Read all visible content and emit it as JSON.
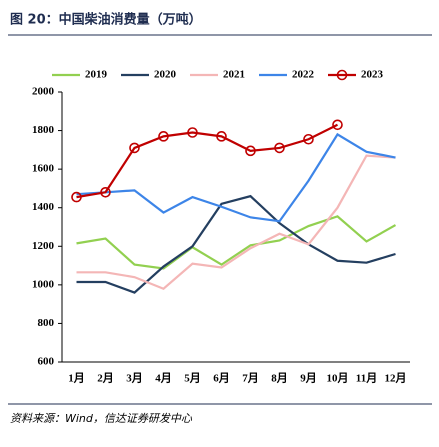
{
  "chart_data": {
    "type": "line",
    "title": "图 20：中国柴油消费量（万吨）",
    "source": "资料来源：Wind，信达证券研发中心",
    "categories": [
      "1月",
      "2月",
      "3月",
      "4月",
      "5月",
      "6月",
      "7月",
      "8月",
      "9月",
      "10月",
      "11月",
      "12月"
    ],
    "series": [
      {
        "name": "2019",
        "color": "#92d050",
        "values": [
          1215,
          1240,
          1105,
          1085,
          1195,
          1105,
          1205,
          1230,
          1305,
          1355,
          1225,
          1310
        ]
      },
      {
        "name": "2020",
        "color": "#243f60",
        "values": [
          1015,
          1015,
          960,
          1095,
          1200,
          1420,
          1460,
          1320,
          1210,
          1125,
          1115,
          1160
        ]
      },
      {
        "name": "2021",
        "color": "#f4b6b6",
        "values": [
          1065,
          1065,
          1040,
          980,
          1110,
          1090,
          1190,
          1265,
          1210,
          1400,
          1670,
          1660
        ]
      },
      {
        "name": "2022",
        "color": "#3d85e8",
        "values": [
          1470,
          1480,
          1490,
          1375,
          1455,
          1405,
          1350,
          1330,
          1540,
          1780,
          1690,
          1660
        ]
      },
      {
        "name": "2023",
        "color": "#c00000",
        "marker": "circle",
        "values": [
          1455,
          1480,
          1710,
          1770,
          1790,
          1770,
          1695,
          1710,
          1755,
          1830,
          null,
          null
        ]
      }
    ],
    "ylim": [
      600,
      2000
    ],
    "yticks": [
      600,
      800,
      1000,
      1200,
      1400,
      1600,
      1800,
      2000
    ],
    "grid": false,
    "legend": "top"
  }
}
